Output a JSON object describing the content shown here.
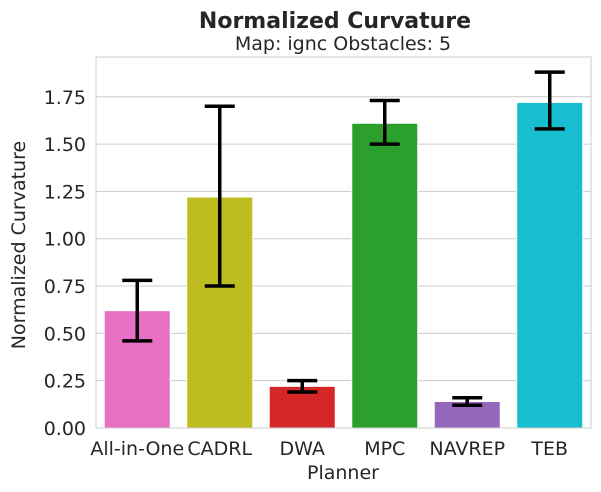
{
  "chart_data": {
    "type": "bar",
    "title": "Normalized Curvature",
    "subtitle": "Map: ignc Obstacles: 5",
    "xlabel": "Planner",
    "ylabel": "Normalized Curvature",
    "categories": [
      "All-in-One",
      "CADRL",
      "DWA",
      "MPC",
      "NAVREP",
      "TEB"
    ],
    "values": [
      0.62,
      1.22,
      0.22,
      1.61,
      0.14,
      1.72
    ],
    "error_low": [
      0.46,
      0.75,
      0.19,
      1.5,
      0.12,
      1.58
    ],
    "error_high": [
      0.78,
      1.7,
      0.25,
      1.73,
      0.16,
      1.88
    ],
    "colors": [
      "#e870c4",
      "#bdbd1f",
      "#d62728",
      "#2ca02c",
      "#9467bd",
      "#17becf"
    ],
    "ylim": [
      0,
      1.96
    ],
    "yticks": [
      0.0,
      0.25,
      0.5,
      0.75,
      1.0,
      1.25,
      1.5,
      1.75
    ],
    "ytick_labels": [
      "0.00",
      "0.25",
      "0.50",
      "0.75",
      "1.00",
      "1.25",
      "1.50",
      "1.75"
    ],
    "grid": "horizontal",
    "errorbar_color": "#000000"
  }
}
